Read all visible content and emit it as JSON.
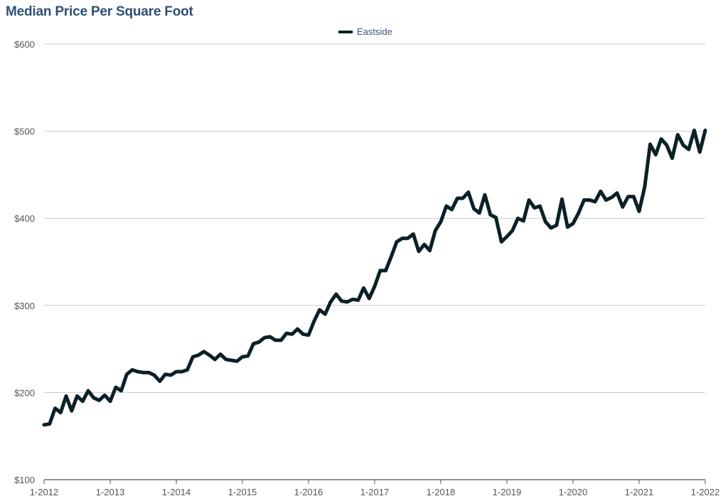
{
  "colors": {
    "title": "#2f4f74",
    "series": "#0b2027",
    "grid": "#c8c8c8",
    "axis": "#555555"
  },
  "chart_data": {
    "type": "line",
    "title": "Median Price Per Square Foot",
    "xlabel": "",
    "ylabel": "",
    "grid": true,
    "legend_position": "top-center",
    "y_ticks": [
      {
        "value": 100,
        "label": "$100"
      },
      {
        "value": 200,
        "label": "$200"
      },
      {
        "value": 300,
        "label": "$300"
      },
      {
        "value": 400,
        "label": "$400"
      },
      {
        "value": 500,
        "label": "$500"
      },
      {
        "value": 600,
        "label": "$600"
      }
    ],
    "x_ticks": [
      "1-2012",
      "1-2013",
      "1-2014",
      "1-2015",
      "1-2016",
      "1-2017",
      "1-2018",
      "1-2019",
      "1-2020",
      "1-2021",
      "1-2022"
    ],
    "ylim": [
      100,
      600
    ],
    "xlim": [
      "2012-01",
      "2022-01"
    ],
    "series": [
      {
        "name": "Eastside",
        "x": [
          "2012-01",
          "2012-02",
          "2012-03",
          "2012-04",
          "2012-05",
          "2012-06",
          "2012-07",
          "2012-08",
          "2012-09",
          "2012-10",
          "2012-11",
          "2012-12",
          "2013-01",
          "2013-02",
          "2013-03",
          "2013-04",
          "2013-05",
          "2013-06",
          "2013-07",
          "2013-08",
          "2013-09",
          "2013-10",
          "2013-11",
          "2013-12",
          "2014-01",
          "2014-02",
          "2014-03",
          "2014-04",
          "2014-05",
          "2014-06",
          "2014-07",
          "2014-08",
          "2014-09",
          "2014-10",
          "2014-11",
          "2014-12",
          "2015-01",
          "2015-02",
          "2015-03",
          "2015-04",
          "2015-05",
          "2015-06",
          "2015-07",
          "2015-08",
          "2015-09",
          "2015-10",
          "2015-11",
          "2015-12",
          "2016-01",
          "2016-02",
          "2016-03",
          "2016-04",
          "2016-05",
          "2016-06",
          "2016-07",
          "2016-08",
          "2016-09",
          "2016-10",
          "2016-11",
          "2016-12",
          "2017-01",
          "2017-02",
          "2017-03",
          "2017-04",
          "2017-05",
          "2017-06",
          "2017-07",
          "2017-08",
          "2017-09",
          "2017-10",
          "2017-11",
          "2017-12",
          "2018-01",
          "2018-02",
          "2018-03",
          "2018-04",
          "2018-05",
          "2018-06",
          "2018-07",
          "2018-08",
          "2018-09",
          "2018-10",
          "2018-11",
          "2018-12",
          "2019-01",
          "2019-02",
          "2019-03",
          "2019-04",
          "2019-05",
          "2019-06",
          "2019-07",
          "2019-08",
          "2019-09",
          "2019-10",
          "2019-11",
          "2019-12",
          "2020-01",
          "2020-02",
          "2020-03",
          "2020-04",
          "2020-05",
          "2020-06",
          "2020-07",
          "2020-08",
          "2020-09",
          "2020-10",
          "2020-11",
          "2020-12",
          "2021-01",
          "2021-02",
          "2021-03",
          "2021-04",
          "2021-05",
          "2021-06",
          "2021-07",
          "2021-08",
          "2021-09",
          "2021-10",
          "2021-11",
          "2021-12",
          "2022-01"
        ],
        "values": [
          163,
          164,
          182,
          177,
          196,
          179,
          196,
          190,
          202,
          194,
          191,
          197,
          190,
          206,
          202,
          221,
          226,
          224,
          223,
          223,
          220,
          213,
          221,
          220,
          224,
          224,
          226,
          241,
          243,
          247,
          243,
          238,
          244,
          238,
          237,
          236,
          241,
          242,
          256,
          258,
          263,
          264,
          260,
          260,
          268,
          267,
          273,
          267,
          266,
          282,
          295,
          290,
          304,
          313,
          305,
          304,
          307,
          306,
          320,
          308,
          322,
          340,
          340,
          356,
          373,
          377,
          377,
          382,
          362,
          370,
          363,
          386,
          396,
          414,
          410,
          423,
          423,
          430,
          411,
          406,
          427,
          404,
          401,
          373,
          379,
          386,
          400,
          397,
          421,
          412,
          414,
          396,
          389,
          392,
          422,
          390,
          394,
          406,
          421,
          421,
          419,
          431,
          421,
          424,
          429,
          413,
          425,
          425,
          408,
          436,
          485,
          473,
          491,
          484,
          469,
          496,
          484,
          479,
          501,
          476,
          501
        ]
      }
    ]
  }
}
